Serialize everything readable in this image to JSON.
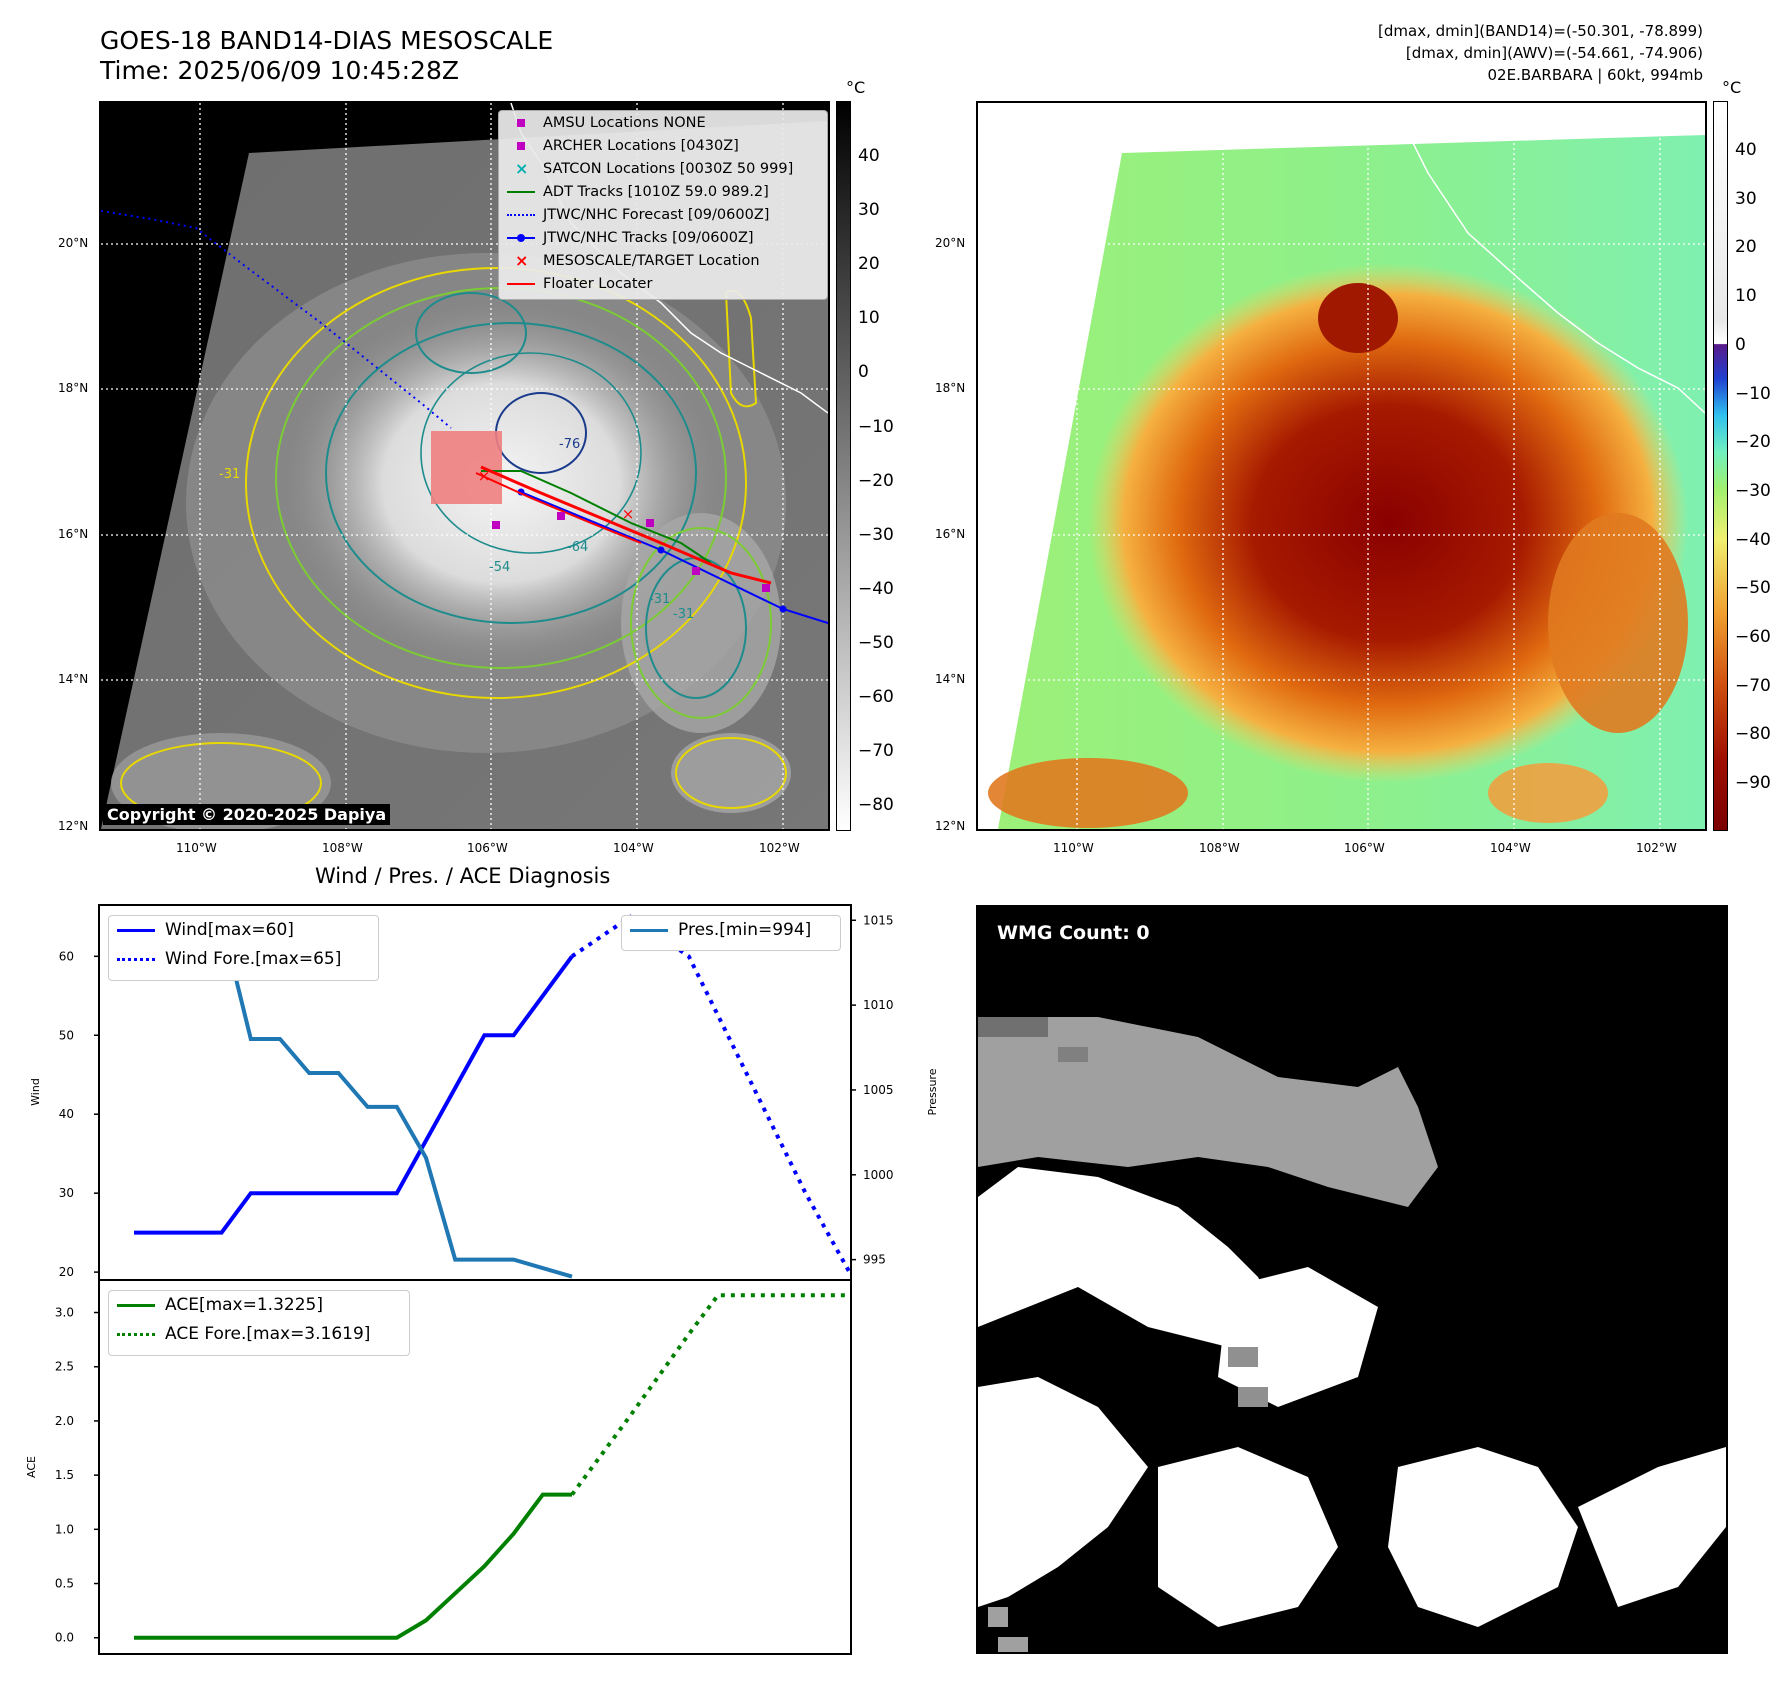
{
  "header": {
    "title": "GOES-18 BAND14-DIAS MESOSCALE",
    "time": "Time: 2025/06/09 10:45:28Z",
    "stats_band14": "[dmax, dmin](BAND14)=(-50.301, -78.899)",
    "stats_awv": "[dmax, dmin](AWV)=(-54.661, -74.906)",
    "storm": "02E.BARBARA | 60kt, 994mb"
  },
  "map": {
    "lat_labels": [
      "20°N",
      "18°N",
      "16°N",
      "14°N",
      "12°N"
    ],
    "lon_labels": [
      "110°W",
      "108°W",
      "106°W",
      "104°W",
      "102°W"
    ],
    "colorbar_unit": "°C",
    "colorbar_ticks_left": [
      "40",
      "30",
      "20",
      "10",
      "0",
      "−10",
      "−20",
      "−30",
      "−40",
      "−50",
      "−60",
      "−70",
      "−80"
    ],
    "colorbar_ticks_right": [
      "40",
      "30",
      "20",
      "10",
      "0",
      "−10",
      "−20",
      "−30",
      "−40",
      "−50",
      "−60",
      "−70",
      "−80",
      "−90"
    ],
    "copyright": "Copyright © 2020-2025 Dapiya",
    "contour_labels": [
      "-76",
      "-64",
      "-54",
      "-31",
      "-31",
      "-31"
    ],
    "legend": [
      {
        "label": "AMSU Locations NONE",
        "symbol": "square-icon",
        "color": "#c000c0"
      },
      {
        "label": "ARCHER Locations [0430Z]",
        "symbol": "square-icon",
        "color": "#c000c0"
      },
      {
        "label": "SATCON Locations [0030Z 50 999]",
        "symbol": "cross-icon",
        "color": "#00b0b0"
      },
      {
        "label": "ADT Tracks [1010Z 59.0 989.2]",
        "symbol": "line-icon",
        "color": "#008000"
      },
      {
        "label": "JTWC/NHC Forecast [09/0600Z]",
        "symbol": "dotted-line-icon",
        "color": "#0000ff"
      },
      {
        "label": "JTWC/NHC Tracks [09/0600Z]",
        "symbol": "line-dot-icon",
        "color": "#0000ff"
      },
      {
        "label": "MESOSCALE/TARGET Location",
        "symbol": "x-icon",
        "color": "#ff0000"
      },
      {
        "label": "Floater Locater",
        "symbol": "line-icon",
        "color": "#ff0000"
      }
    ]
  },
  "wmg": {
    "label": "WMG Count: 0"
  },
  "chart_data": [
    {
      "type": "line",
      "title": "Wind / Pres. / ACE Diagnosis",
      "ylabel": "Wind",
      "ylabel_right": "Pressure",
      "ylim": [
        19,
        66.5
      ],
      "ylim_right": [
        993.8,
        1015.9
      ],
      "yticks": [
        20,
        30,
        40,
        50,
        60
      ],
      "yticks_right": [
        995,
        1000,
        1005,
        1010,
        1015
      ],
      "x": [
        0,
        1,
        2,
        3,
        4,
        5,
        6,
        7,
        8,
        9,
        10,
        11,
        12,
        13,
        14,
        15,
        16,
        17,
        18,
        19,
        20,
        21,
        22,
        23,
        24
      ],
      "series": [
        {
          "name": "Wind[max=60]",
          "axis": "left",
          "color": "#0000ff",
          "style": "solid",
          "x": [
            0,
            3,
            4,
            9,
            12,
            13,
            15
          ],
          "values": [
            25,
            25,
            30,
            30,
            50,
            50,
            60
          ]
        },
        {
          "name": "Wind Fore.[max=65]",
          "axis": "left",
          "color": "#0000ff",
          "style": "dotted",
          "x": [
            15,
            17,
            19,
            21,
            23,
            24.5
          ],
          "values": [
            60,
            65,
            60,
            45,
            30,
            20
          ]
        },
        {
          "name": "Pres.[min=994]",
          "axis": "right",
          "color": "#1f77b4",
          "style": "solid",
          "x": [
            1,
            3,
            4,
            5,
            6,
            7,
            8,
            9,
            10,
            11,
            12,
            13,
            15
          ],
          "values": [
            1015,
            1015,
            1008,
            1008,
            1006,
            1006,
            1004,
            1004,
            1001,
            995,
            995,
            995,
            994
          ]
        }
      ]
    },
    {
      "type": "line",
      "ylabel": "ACE",
      "ylim": [
        -0.15,
        3.3
      ],
      "yticks": [
        0.0,
        0.5,
        1.0,
        1.5,
        2.0,
        2.5,
        3.0
      ],
      "ytick_labels": [
        "0.0",
        "0.5",
        "1.0",
        "1.5",
        "2.0",
        "2.5",
        "3.0"
      ],
      "series": [
        {
          "name": "ACE[max=1.3225]",
          "color": "#008000",
          "style": "solid",
          "x": [
            0,
            9,
            10,
            11,
            12,
            13,
            14,
            15
          ],
          "values": [
            0,
            0,
            0.16,
            0.41,
            0.66,
            0.96,
            1.32,
            1.32
          ]
        },
        {
          "name": "ACE Fore.[max=3.1619]",
          "color": "#008000",
          "style": "dotted",
          "x": [
            15,
            17,
            19,
            20,
            24.5
          ],
          "values": [
            1.32,
            2.05,
            2.8,
            3.16,
            3.16
          ]
        }
      ]
    }
  ]
}
